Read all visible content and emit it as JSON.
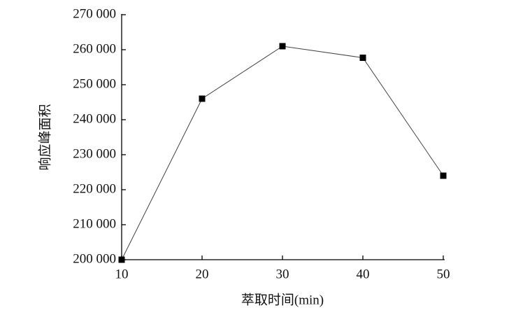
{
  "chart_data": {
    "type": "line",
    "x_label": "萃取时间(min)",
    "y_label": "响应峰面积",
    "x": [
      10,
      20,
      30,
      40,
      50
    ],
    "values": [
      200000,
      246000,
      261000,
      257700,
      224000
    ],
    "color": "#000000",
    "marker": "square",
    "xlim": [
      10,
      50
    ],
    "xticks": [
      10,
      20,
      30,
      40,
      50
    ],
    "ylim": [
      200000,
      270000
    ],
    "yticks": [
      {
        "value": 200000,
        "label": "200 000"
      },
      {
        "value": 210000,
        "label": "210 000"
      },
      {
        "value": 220000,
        "label": "220 000"
      },
      {
        "value": 230000,
        "label": "230 000"
      },
      {
        "value": 240000,
        "label": "240 000"
      },
      {
        "value": 250000,
        "label": "250 000"
      },
      {
        "value": 260000,
        "label": "260 000"
      },
      {
        "value": 270000,
        "label": "270 000"
      }
    ],
    "grid": false
  }
}
